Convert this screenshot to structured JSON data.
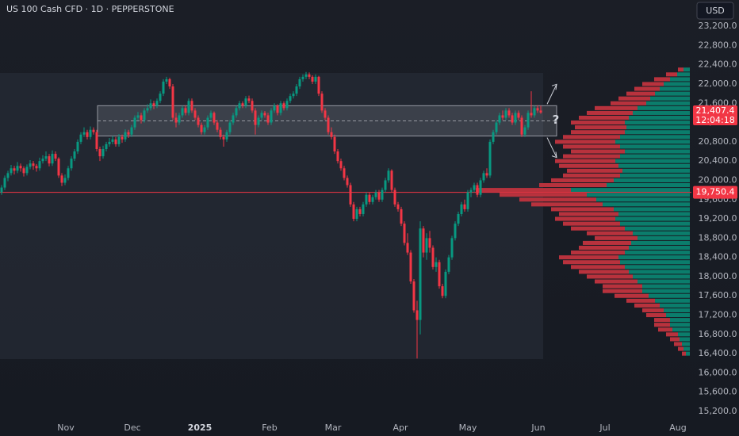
{
  "chart_data": {
    "type": "candlestick",
    "title": "US 100 Cash CFD · 1D · PEPPERSTONE",
    "currency": "USD",
    "up_color": "#089981",
    "down_color": "#f23645",
    "xlim": [
      -0.5,
      217
    ],
    "xticks": [
      {
        "value": 20.25,
        "label": "Nov"
      },
      {
        "value": 41.25,
        "label": "Dec"
      },
      {
        "value": 62.5,
        "label": "2025"
      },
      {
        "value": 84.5,
        "label": "Feb"
      },
      {
        "value": 104.5,
        "label": "Mar"
      },
      {
        "value": 125.75,
        "label": "Apr"
      },
      {
        "value": 147,
        "label": "May"
      },
      {
        "value": 169.25,
        "label": "Jun"
      },
      {
        "value": 190.25,
        "label": "Jul"
      },
      {
        "value": 213.25,
        "label": "Aug"
      }
    ],
    "ylim": [
      14690,
      23745
    ],
    "yticks": [
      {
        "value": 23200,
        "label": "23,200.0"
      },
      {
        "value": 22800,
        "label": "22,800.0"
      },
      {
        "value": 22400,
        "label": "22,400.0"
      },
      {
        "value": 22000,
        "label": "22,000.0"
      },
      {
        "value": 21600,
        "label": "21,600.0"
      },
      {
        "value": 21200,
        "label": "21,200.0"
      },
      {
        "value": 20800,
        "label": "20,800.0"
      },
      {
        "value": 20400,
        "label": "20,400.0"
      },
      {
        "value": 20000,
        "label": "20,000.0"
      },
      {
        "value": 19600,
        "label": "19,600.0"
      },
      {
        "value": 19200,
        "label": "19,200.0"
      },
      {
        "value": 18800,
        "label": "18,800.0"
      },
      {
        "value": 18400,
        "label": "18,400.0"
      },
      {
        "value": 18000,
        "label": "18,000.0"
      },
      {
        "value": 17600,
        "label": "17,600.0"
      },
      {
        "value": 17200,
        "label": "17,200.0"
      },
      {
        "value": 16800,
        "label": "16,800.0"
      },
      {
        "value": 16400,
        "label": "16,400.0"
      },
      {
        "value": 16000,
        "label": "16,000.0"
      },
      {
        "value": 15600,
        "label": "15,600.0"
      },
      {
        "value": 15200,
        "label": "15,200.0"
      }
    ],
    "ohlc": [
      [
        19750,
        19900,
        19700,
        19850
      ],
      [
        19850,
        20100,
        19800,
        20050
      ],
      [
        20050,
        20200,
        19980,
        20150
      ],
      [
        20150,
        20320,
        20100,
        20250
      ],
      [
        20250,
        20300,
        20120,
        20200
      ],
      [
        20200,
        20380,
        20150,
        20300
      ],
      [
        20300,
        20350,
        20180,
        20250
      ],
      [
        20250,
        20290,
        20080,
        20150
      ],
      [
        20150,
        20330,
        20100,
        20280
      ],
      [
        20280,
        20420,
        20230,
        20350
      ],
      [
        20350,
        20400,
        20220,
        20300
      ],
      [
        20300,
        20340,
        20180,
        20250
      ],
      [
        20250,
        20470,
        20200,
        20400
      ],
      [
        20400,
        20520,
        20350,
        20450
      ],
      [
        20450,
        20600,
        20400,
        20500
      ],
      [
        20500,
        20550,
        20290,
        20350
      ],
      [
        20350,
        20620,
        20300,
        20550
      ],
      [
        20550,
        20600,
        20400,
        20450
      ],
      [
        20450,
        20480,
        20050,
        20100
      ],
      [
        20100,
        20150,
        19880,
        19950
      ],
      [
        19950,
        20120,
        19900,
        20050
      ],
      [
        20050,
        20300,
        20000,
        20250
      ],
      [
        20250,
        20500,
        20200,
        20450
      ],
      [
        20450,
        20650,
        20400,
        20600
      ],
      [
        20600,
        20850,
        20550,
        20800
      ],
      [
        20800,
        21000,
        20750,
        20950
      ],
      [
        20950,
        21100,
        20900,
        21000
      ],
      [
        21000,
        21050,
        20850,
        20900
      ],
      [
        20900,
        21120,
        20850,
        21050
      ],
      [
        21050,
        21100,
        20950,
        21000
      ],
      [
        21000,
        21050,
        20600,
        20650
      ],
      [
        20650,
        20700,
        20400,
        20500
      ],
      [
        20500,
        20720,
        20450,
        20650
      ],
      [
        20650,
        20800,
        20600,
        20750
      ],
      [
        20750,
        20880,
        20700,
        20800
      ],
      [
        20800,
        20920,
        20750,
        20850
      ],
      [
        20850,
        20900,
        20700,
        20750
      ],
      [
        20750,
        20960,
        20700,
        20900
      ],
      [
        20900,
        20950,
        20780,
        20850
      ],
      [
        20850,
        21060,
        20800,
        21000
      ],
      [
        21000,
        21050,
        20880,
        20950
      ],
      [
        20950,
        21150,
        20900,
        21100
      ],
      [
        21100,
        21350,
        21050,
        21300
      ],
      [
        21300,
        21420,
        21250,
        21350
      ],
      [
        21350,
        21400,
        21180,
        21250
      ],
      [
        21250,
        21500,
        21200,
        21450
      ],
      [
        21450,
        21580,
        21400,
        21500
      ],
      [
        21500,
        21680,
        21450,
        21600
      ],
      [
        21600,
        21650,
        21480,
        21550
      ],
      [
        21550,
        21700,
        21500,
        21650
      ],
      [
        21650,
        21850,
        21600,
        21800
      ],
      [
        21800,
        22100,
        21750,
        22050
      ],
      [
        22050,
        22150,
        22000,
        22100
      ],
      [
        22100,
        22130,
        21900,
        21950
      ],
      [
        21950,
        22000,
        21250,
        21300
      ],
      [
        21300,
        21400,
        21100,
        21200
      ],
      [
        21200,
        21400,
        21150,
        21350
      ],
      [
        21350,
        21550,
        21300,
        21500
      ],
      [
        21500,
        21560,
        21350,
        21400
      ],
      [
        21400,
        21700,
        21350,
        21650
      ],
      [
        21650,
        21700,
        21400,
        21450
      ],
      [
        21450,
        21500,
        21250,
        21300
      ],
      [
        21300,
        21350,
        21100,
        21150
      ],
      [
        21150,
        21200,
        20950,
        21000
      ],
      [
        21000,
        21150,
        20950,
        21100
      ],
      [
        21100,
        21350,
        21050,
        21300
      ],
      [
        21300,
        21450,
        21250,
        21400
      ],
      [
        21400,
        21430,
        21150,
        21200
      ],
      [
        21200,
        21250,
        21000,
        21050
      ],
      [
        21050,
        21100,
        20850,
        20900
      ],
      [
        20900,
        20950,
        20700,
        20850
      ],
      [
        20850,
        21050,
        20800,
        21000
      ],
      [
        21000,
        21250,
        20950,
        21200
      ],
      [
        21200,
        21400,
        21150,
        21350
      ],
      [
        21350,
        21550,
        21300,
        21500
      ],
      [
        21500,
        21650,
        21450,
        21600
      ],
      [
        21600,
        21640,
        21500,
        21550
      ],
      [
        21550,
        21750,
        21500,
        21700
      ],
      [
        21700,
        21760,
        21600,
        21650
      ],
      [
        21650,
        21700,
        21400,
        21450
      ],
      [
        21450,
        21500,
        20950,
        21150
      ],
      [
        21150,
        21350,
        21100,
        21300
      ],
      [
        21300,
        21450,
        21250,
        21400
      ],
      [
        21400,
        21440,
        21300,
        21350
      ],
      [
        21350,
        21400,
        21150,
        21200
      ],
      [
        21200,
        21500,
        21150,
        21450
      ],
      [
        21450,
        21600,
        21400,
        21550
      ],
      [
        21550,
        21580,
        21350,
        21400
      ],
      [
        21400,
        21650,
        21350,
        21600
      ],
      [
        21600,
        21640,
        21450,
        21500
      ],
      [
        21500,
        21700,
        21450,
        21650
      ],
      [
        21650,
        21800,
        21600,
        21750
      ],
      [
        21750,
        21850,
        21700,
        21800
      ],
      [
        21800,
        22000,
        21750,
        21950
      ],
      [
        21950,
        22150,
        21900,
        22100
      ],
      [
        22100,
        22200,
        22050,
        22150
      ],
      [
        22150,
        22250,
        22100,
        22200
      ],
      [
        22200,
        22240,
        22100,
        22150
      ],
      [
        22150,
        22180,
        22000,
        22050
      ],
      [
        22050,
        22200,
        22000,
        22150
      ],
      [
        22150,
        22170,
        21750,
        21800
      ],
      [
        21800,
        21850,
        21400,
        21450
      ],
      [
        21450,
        21500,
        21250,
        21300
      ],
      [
        21300,
        21350,
        20950,
        21000
      ],
      [
        21000,
        21100,
        20850,
        20900
      ],
      [
        20900,
        20950,
        20550,
        20600
      ],
      [
        20600,
        20650,
        20350,
        20400
      ],
      [
        20400,
        20450,
        20200,
        20250
      ],
      [
        20250,
        20300,
        20000,
        20050
      ],
      [
        20050,
        20100,
        19850,
        19900
      ],
      [
        19900,
        19950,
        19450,
        19500
      ],
      [
        19500,
        19550,
        19150,
        19200
      ],
      [
        19200,
        19450,
        19150,
        19400
      ],
      [
        19400,
        19450,
        19250,
        19300
      ],
      [
        19300,
        19550,
        19250,
        19500
      ],
      [
        19500,
        19750,
        19450,
        19700
      ],
      [
        19700,
        19750,
        19500,
        19550
      ],
      [
        19550,
        19700,
        19500,
        19650
      ],
      [
        19650,
        19800,
        19600,
        19750
      ],
      [
        19750,
        19800,
        19550,
        19600
      ],
      [
        19600,
        19850,
        19550,
        19800
      ],
      [
        19800,
        20050,
        19750,
        20000
      ],
      [
        20000,
        20250,
        19950,
        20200
      ],
      [
        20200,
        20230,
        19750,
        19800
      ],
      [
        19800,
        19850,
        19450,
        19500
      ],
      [
        19500,
        19550,
        19350,
        19400
      ],
      [
        19400,
        19450,
        19050,
        19100
      ],
      [
        19100,
        19150,
        18650,
        18700
      ],
      [
        18700,
        18900,
        18450,
        18500
      ],
      [
        18500,
        18550,
        17850,
        17900
      ],
      [
        17900,
        17950,
        17250,
        17300
      ],
      [
        17300,
        17500,
        16300,
        17100
      ],
      [
        17100,
        19150,
        16800,
        19000
      ],
      [
        19000,
        19050,
        18400,
        18500
      ],
      [
        18500,
        18900,
        18350,
        18800
      ],
      [
        18800,
        18950,
        18500,
        18600
      ],
      [
        18600,
        18650,
        18150,
        18200
      ],
      [
        18200,
        18400,
        18100,
        18300
      ],
      [
        18300,
        18350,
        17750,
        17800
      ],
      [
        17800,
        17850,
        17550,
        17600
      ],
      [
        17600,
        18150,
        17550,
        18100
      ],
      [
        18100,
        18450,
        18050,
        18400
      ],
      [
        18400,
        18850,
        18350,
        18800
      ],
      [
        18800,
        19150,
        18750,
        19100
      ],
      [
        19100,
        19350,
        19050,
        19300
      ],
      [
        19300,
        19550,
        19250,
        19500
      ],
      [
        19500,
        19600,
        19350,
        19400
      ],
      [
        19400,
        19800,
        19350,
        19750
      ],
      [
        19750,
        19850,
        19650,
        19800
      ],
      [
        19800,
        19950,
        19750,
        19900
      ],
      [
        19900,
        19950,
        19650,
        19700
      ],
      [
        19700,
        20050,
        19650,
        20000
      ],
      [
        20000,
        20200,
        19950,
        20150
      ],
      [
        20150,
        20250,
        20050,
        20100
      ],
      [
        20100,
        20850,
        20050,
        20800
      ],
      [
        20800,
        21050,
        20750,
        21000
      ],
      [
        21000,
        21250,
        20950,
        21200
      ],
      [
        21200,
        21400,
        21150,
        21350
      ],
      [
        21350,
        21450,
        21250,
        21300
      ],
      [
        21300,
        21500,
        21250,
        21450
      ],
      [
        21450,
        21500,
        21300,
        21350
      ],
      [
        21350,
        21400,
        21150,
        21200
      ],
      [
        21200,
        21450,
        21150,
        21400
      ],
      [
        21400,
        21450,
        21250,
        21300
      ],
      [
        21300,
        21350,
        20900,
        20950
      ],
      [
        20950,
        21150,
        20900,
        21100
      ],
      [
        21100,
        21450,
        21050,
        21400
      ],
      [
        21400,
        21850,
        21300,
        21350
      ],
      [
        21350,
        21550,
        21300,
        21500
      ],
      [
        21500,
        21560,
        21400,
        21450
      ],
      [
        21450,
        21550,
        21380,
        21407.4
      ]
    ],
    "last_price": {
      "value": 21407.4,
      "label": "21,407.4"
    },
    "countdown": "12:04:18",
    "horizontal_line": {
      "value": 19750.4,
      "label": "19,750.4"
    },
    "zone": {
      "start": 30.25,
      "end": 175,
      "top": 21550,
      "bottom": 20920,
      "label": "?"
    },
    "volume_profile": {
      "up_color": "#0b7d6c",
      "down_color": "#b8323d",
      "prices": [
        16400,
        16500,
        16600,
        16700,
        16800,
        16900,
        17000,
        17100,
        17200,
        17300,
        17400,
        17500,
        17600,
        17700,
        17800,
        17900,
        18000,
        18100,
        18200,
        18300,
        18400,
        18500,
        18600,
        18700,
        18800,
        18900,
        19000,
        19100,
        19200,
        19300,
        19400,
        19500,
        19600,
        19700,
        19800,
        19900,
        20000,
        20100,
        20200,
        20300,
        20400,
        20500,
        20600,
        20700,
        20800,
        20900,
        21000,
        21100,
        21200,
        21300,
        21400,
        21500,
        21600,
        21700,
        21800,
        21900,
        22000,
        22100,
        22200,
        22300
      ],
      "up": [
        5,
        8,
        10,
        13,
        15,
        22,
        25,
        25,
        30,
        33,
        38,
        44,
        52,
        60,
        60,
        66,
        72,
        77,
        82,
        88,
        90,
        82,
        77,
        74,
        66,
        72,
        82,
        88,
        94,
        90,
        96,
        110,
        118,
        130,
        150,
        105,
        96,
        88,
        85,
        90,
        94,
        88,
        82,
        88,
        94,
        88,
        82,
        80,
        82,
        77,
        72,
        66,
        55,
        50,
        44,
        38,
        33,
        25,
        16,
        8
      ],
      "down": [
        5,
        7,
        10,
        12,
        15,
        18,
        20,
        20,
        25,
        27,
        32,
        36,
        43,
        50,
        50,
        54,
        58,
        63,
        68,
        72,
        75,
        68,
        63,
        61,
        54,
        58,
        68,
        72,
        76,
        75,
        79,
        90,
        97,
        110,
        120,
        85,
        79,
        72,
        70,
        75,
        76,
        72,
        68,
        72,
        76,
        72,
        68,
        65,
        68,
        63,
        58,
        54,
        45,
        40,
        36,
        32,
        27,
        20,
        14,
        7
      ]
    }
  }
}
